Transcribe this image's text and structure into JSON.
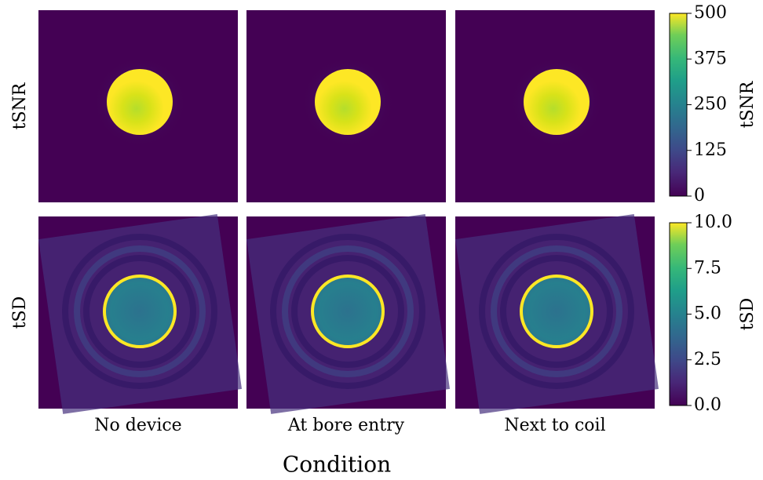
{
  "chart_data": [
    {
      "type": "heatmap",
      "ylabel": "tSNR",
      "colormap": "viridis",
      "colorbar": {
        "label": "tSNR",
        "lim": [
          0,
          500
        ],
        "ticks": [
          0,
          125,
          250,
          375,
          500
        ]
      }
    },
    {
      "type": "heatmap",
      "ylabel": "tSD",
      "colormap": "viridis",
      "categories": [
        "No device",
        "At bore entry",
        "Next to coil"
      ],
      "xlabel": "Condition",
      "colorbar": {
        "label": "tSD",
        "lim": [
          0,
          10
        ],
        "ticks": [
          {
            "value": 0,
            "label": "0.0"
          },
          {
            "value": 2.5,
            "label": "2.5"
          },
          {
            "value": 5,
            "label": "5.0"
          },
          {
            "value": 7.5,
            "label": "7.5"
          },
          {
            "value": 10,
            "label": "10.0"
          }
        ]
      }
    }
  ]
}
